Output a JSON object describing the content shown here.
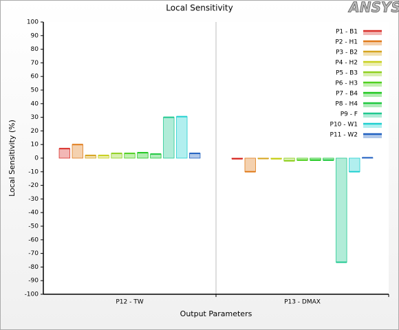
{
  "logo": "ANSYS",
  "chart_data": {
    "type": "bar",
    "title": "Local Sensitivity",
    "xlabel": "Output Parameters",
    "ylabel": "Local Sensitivity (%)",
    "categories": [
      "P12 - TW",
      "P13 - DMAX"
    ],
    "series": [
      {
        "name": "P1 - B1",
        "color": "#d9302a",
        "values": [
          7,
          -0.5
        ]
      },
      {
        "name": "P2 - H1",
        "color": "#e07b1a",
        "values": [
          10,
          -10
        ]
      },
      {
        "name": "P3 - B2",
        "color": "#d6a520",
        "values": [
          2,
          -0.3
        ]
      },
      {
        "name": "P4 - H2",
        "color": "#c8d020",
        "values": [
          2,
          -0.5
        ]
      },
      {
        "name": "P5 - B3",
        "color": "#90d020",
        "values": [
          3.5,
          -2
        ]
      },
      {
        "name": "P6 - H3",
        "color": "#50d020",
        "values": [
          3.5,
          -1.5
        ]
      },
      {
        "name": "P7 - B4",
        "color": "#20c820",
        "values": [
          4,
          -1.5
        ]
      },
      {
        "name": "P8 - H4",
        "color": "#20c840",
        "values": [
          3,
          -1.5
        ]
      },
      {
        "name": "P9 - F",
        "color": "#20c890",
        "values": [
          30,
          -76.5
        ]
      },
      {
        "name": "P10 - W1",
        "color": "#20d0d0",
        "values": [
          30.5,
          -10
        ]
      },
      {
        "name": "P11 - W2",
        "color": "#2060c0",
        "values": [
          3.5,
          0.3
        ]
      }
    ],
    "ylim": [
      -100,
      100
    ],
    "yticks": [
      -100,
      -90,
      -80,
      -70,
      -60,
      -50,
      -40,
      -30,
      -20,
      -10,
      0,
      10,
      20,
      30,
      40,
      50,
      60,
      70,
      80,
      90,
      100
    ],
    "grid": false,
    "legend": "upper right"
  }
}
